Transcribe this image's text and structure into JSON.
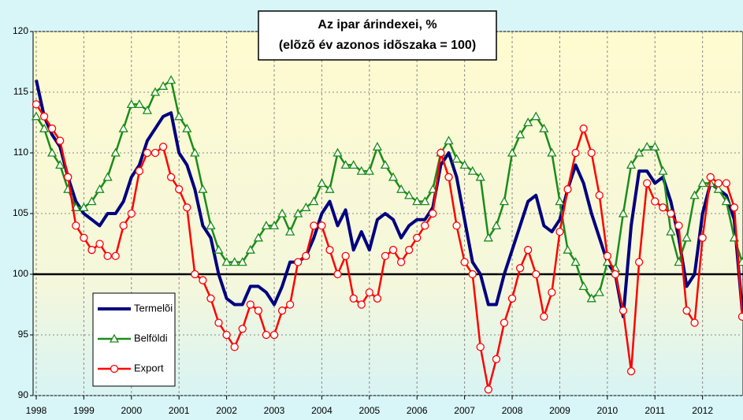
{
  "chart_data": {
    "type": "line",
    "title": [
      "Az ipar árindexei, %",
      "(elõzõ év azonos idõszaka = 100)"
    ],
    "x": [
      1998,
      1998.167,
      1998.333,
      1998.5,
      1998.667,
      1998.833,
      1999,
      1999.167,
      1999.333,
      1999.5,
      1999.667,
      1999.833,
      2000,
      2000.167,
      2000.333,
      2000.5,
      2000.667,
      2000.833,
      2001,
      2001.167,
      2001.333,
      2001.5,
      2001.667,
      2001.833,
      2002,
      2002.167,
      2002.333,
      2002.5,
      2002.667,
      2002.833,
      2003,
      2003.167,
      2003.333,
      2003.5,
      2003.667,
      2003.833,
      2004,
      2004.167,
      2004.333,
      2004.5,
      2004.667,
      2004.833,
      2005,
      2005.167,
      2005.333,
      2005.5,
      2005.667,
      2005.833,
      2006,
      2006.167,
      2006.333,
      2006.5,
      2006.667,
      2006.833,
      2007,
      2007.167,
      2007.333,
      2007.5,
      2007.667,
      2007.833,
      2008,
      2008.167,
      2008.333,
      2008.5,
      2008.667,
      2008.833,
      2009,
      2009.167,
      2009.333,
      2009.5,
      2009.667,
      2009.833,
      2010,
      2010.167,
      2010.333,
      2010.5,
      2010.667,
      2010.833,
      2011,
      2011.167,
      2011.333,
      2011.5,
      2011.667,
      2011.833,
      2012,
      2012.167,
      2012.333,
      2012.5,
      2012.667,
      2012.833
    ],
    "series": [
      {
        "name": "Termelõi",
        "color": "#000080",
        "marker": "none",
        "values": [
          116,
          113,
          111.5,
          110.5,
          108,
          106,
          105,
          104.5,
          104,
          105,
          105,
          106,
          108,
          109,
          111,
          112,
          113,
          113.3,
          110,
          109,
          107,
          104,
          103,
          100,
          98,
          97.5,
          97.5,
          99,
          99,
          98.5,
          97.5,
          99,
          101,
          101,
          101.5,
          103,
          105,
          106,
          104,
          105.3,
          102,
          103.5,
          102,
          104.5,
          105,
          104.5,
          103,
          104,
          104.5,
          104.5,
          105.5,
          109,
          110,
          108,
          104.5,
          101,
          100,
          97.5,
          97.5,
          100,
          102,
          104,
          106,
          106.5,
          104,
          103.5,
          104.5,
          107,
          109,
          107.5,
          105,
          103,
          101,
          100,
          96.5,
          104,
          108.5,
          108.5,
          107.5,
          108,
          106,
          103,
          99,
          100,
          105,
          107.5,
          107,
          106.5,
          104.5,
          97
        ]
      },
      {
        "name": "Belföldi",
        "color": "#1a8c1a",
        "marker": "triangle",
        "values": [
          113,
          112,
          110,
          109,
          107,
          105.5,
          105.5,
          106,
          107,
          108,
          110,
          112,
          114,
          114,
          113.5,
          115,
          115.5,
          116,
          113,
          112,
          110,
          107,
          104,
          102,
          101,
          101,
          101,
          102,
          103,
          104,
          104,
          105,
          103.5,
          105,
          105.5,
          106,
          107.5,
          107,
          110,
          109,
          109,
          108.5,
          108.5,
          110.5,
          109,
          108,
          107,
          106.5,
          106,
          106,
          107,
          110,
          111,
          109.5,
          109,
          108.5,
          108,
          103,
          104,
          106,
          110,
          111.5,
          112.5,
          113,
          112,
          110,
          106,
          102,
          101,
          99,
          98,
          98.5,
          101,
          100.5,
          105,
          109,
          110,
          110.5,
          110.5,
          108.5,
          103.5,
          101,
          103,
          106.5,
          107.5,
          107.5,
          107,
          106,
          103,
          101
        ]
      },
      {
        "name": "Export",
        "color": "#ff0000",
        "marker": "circle",
        "values": [
          114,
          113,
          112,
          111,
          108,
          104,
          103,
          102,
          102.5,
          101.5,
          101.5,
          104,
          105,
          108.5,
          110,
          110,
          110.5,
          108,
          107,
          105.5,
          100,
          99.5,
          98,
          96,
          95,
          94,
          95.5,
          97.5,
          97,
          95,
          95,
          97,
          97.5,
          101,
          101.5,
          104,
          104,
          102,
          100,
          101.5,
          98,
          97.5,
          98.5,
          98,
          101.5,
          102,
          101,
          102,
          103,
          104,
          105,
          110,
          108,
          104,
          101,
          100,
          94,
          90.5,
          93,
          96,
          98,
          100.5,
          102,
          100,
          96.5,
          98.5,
          103.5,
          107,
          110,
          112,
          110,
          106.5,
          101.5,
          100,
          97,
          92,
          101,
          107.5,
          106,
          105.5,
          105,
          104,
          97,
          96,
          103,
          108,
          107.5,
          107.5,
          105.5,
          96.5
        ]
      }
    ],
    "xlim": [
      1998,
      2012.85
    ],
    "xticks": [
      1998,
      1999,
      2000,
      2001,
      2002,
      2003,
      2004,
      2005,
      2006,
      2007,
      2008,
      2009,
      2010,
      2011,
      2012
    ],
    "ylim": [
      90,
      120
    ],
    "yticks": [
      90,
      95,
      100,
      105,
      110,
      115,
      120
    ],
    "reference_line": 100,
    "grid": true,
    "legend": "lower left"
  }
}
